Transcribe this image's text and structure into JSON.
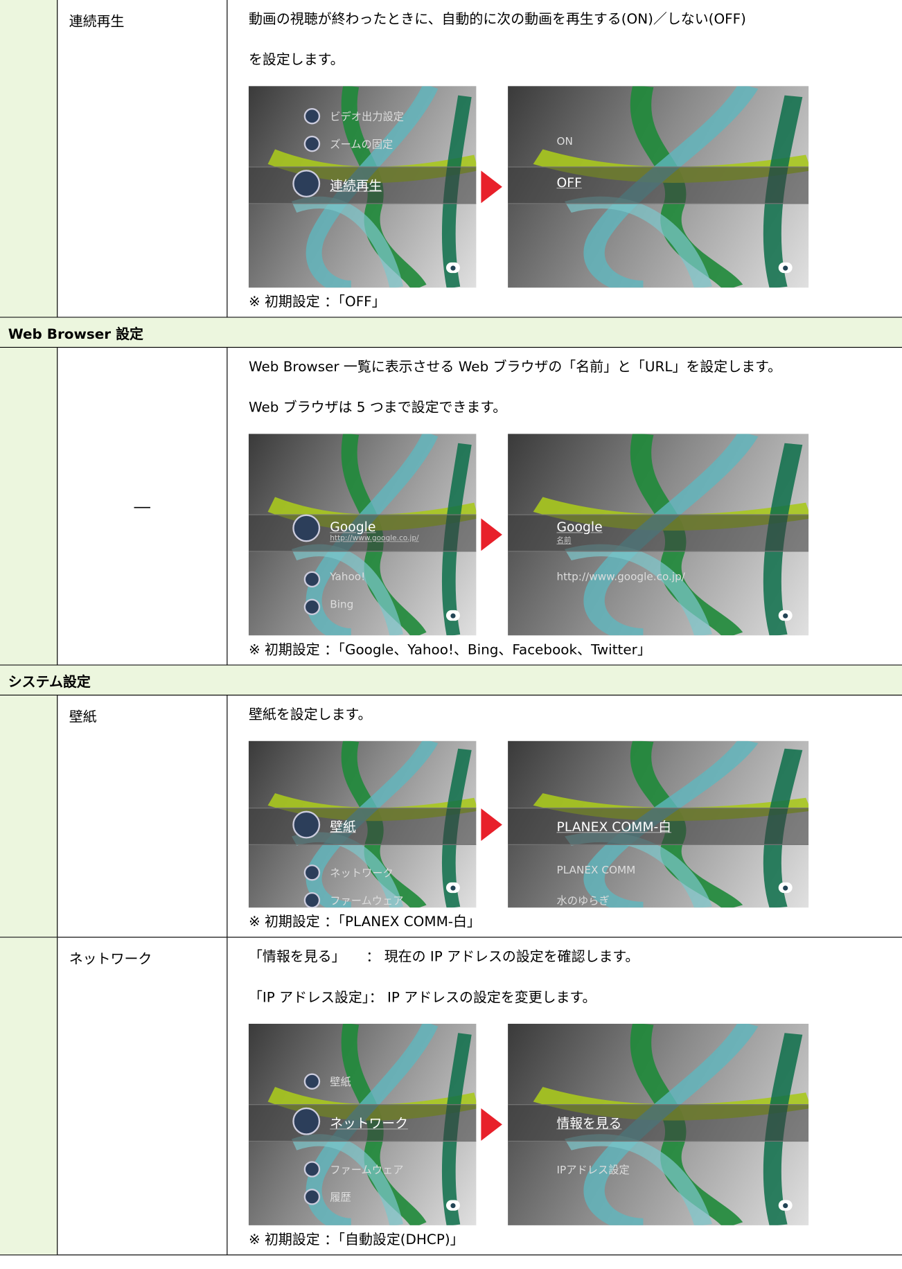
{
  "rows": [
    {
      "name": "連続再生",
      "description": [
        "動画の視聴が終わったときに、自動的に次の動画を再生する(ON)／しない(OFF)",
        "を設定します。"
      ],
      "screens": [
        {
          "items": [
            {
              "text": "ビデオ出力設定"
            },
            {
              "text": "ズームの固定"
            },
            {
              "text": "連続再生",
              "highlight": true
            }
          ]
        },
        {
          "items": [
            {
              "text": "ON"
            },
            {
              "text": "OFF",
              "highlight": true
            }
          ]
        }
      ],
      "note": "※ 初期設定 ：「OFF」"
    },
    {
      "section": "Web Browser 設定"
    },
    {
      "name": "―",
      "description": [
        "Web Browser 一覧に表示させる Web ブラウザの「名前」と「URL」を設定します。",
        "Web ブラウザは 5 つまで設定できます。"
      ],
      "screens": [
        {
          "items": [
            {
              "text": "Google",
              "sub": "http://www.google.co.jp/",
              "highlight": true
            },
            {
              "text": "Yahoo!"
            },
            {
              "text": "Bing"
            }
          ]
        },
        {
          "items": [
            {
              "text": "Google",
              "sub": "名前",
              "highlight": true
            },
            {
              "text": "http://www.google.co.jp/"
            }
          ]
        }
      ],
      "note": "※ 初期設定 ：「Google、Yahoo!、Bing、Facebook、Twitter」"
    },
    {
      "section": "システム設定"
    },
    {
      "name": "壁紙",
      "description": [
        "壁紙を設定します。"
      ],
      "screens": [
        {
          "items": [
            {
              "text": "壁紙",
              "highlight": true
            },
            {
              "text": "ネットワーク"
            },
            {
              "text": "ファームウェア"
            }
          ]
        },
        {
          "items": [
            {
              "text": "PLANEX COMM-白",
              "highlight": true
            },
            {
              "text": "PLANEX COMM"
            },
            {
              "text": "水のゆらぎ"
            }
          ]
        }
      ],
      "note": "※ 初期設定 ：「PLANEX COMM-白」"
    },
    {
      "name": "ネットワーク",
      "description": [
        "「情報を見る」　　： 現在の IP アドレスの設定を確認します。",
        "「IP アドレス設定」： IP アドレスの設定を変更します。"
      ],
      "screens": [
        {
          "items": [
            {
              "text": "壁紙"
            },
            {
              "text": "ネットワーク",
              "highlight": true
            },
            {
              "text": "ファームウェア"
            },
            {
              "text": "履歴"
            }
          ]
        },
        {
          "items": [
            {
              "text": "情報を見る",
              "highlight": true
            },
            {
              "text": "IPアドレス設定"
            }
          ]
        }
      ],
      "note": "※ 初期設定 ：「自動設定(DHCP)」"
    }
  ]
}
